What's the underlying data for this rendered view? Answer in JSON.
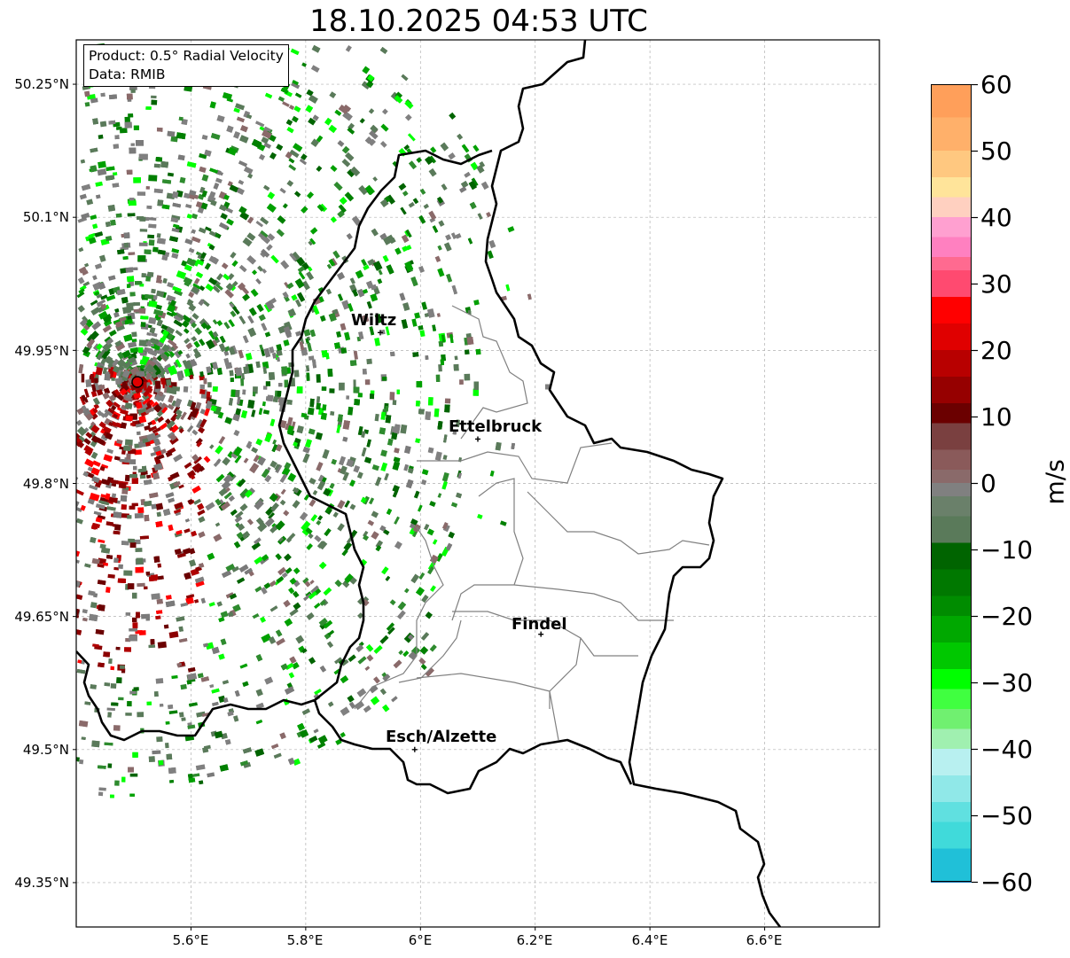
{
  "title": "18.10.2025 04:53 UTC",
  "info": {
    "product": "Product: 0.5° Radial Velocity",
    "source": "Data: RMIB"
  },
  "axes": {
    "lon_ticks": [
      "5.6°E",
      "5.8°E",
      "6°E",
      "6.2°E",
      "6.4°E",
      "6.6°E"
    ],
    "lat_ticks": [
      "50.25°N",
      "50.1°N",
      "49.95°N",
      "49.8°N",
      "49.65°N",
      "49.5°N",
      "49.35°N"
    ],
    "lon_range": [
      5.4,
      6.8
    ],
    "lat_range": [
      49.3,
      50.3
    ]
  },
  "cities": [
    {
      "name": "Wiltz",
      "lon": 5.93,
      "lat": 49.97
    },
    {
      "name": "Ettelbruck",
      "lon": 6.1,
      "lat": 49.85
    },
    {
      "name": "Findel",
      "lon": 6.21,
      "lat": 49.63
    },
    {
      "name": "Esch/Alzette",
      "lon": 5.99,
      "lat": 49.5
    }
  ],
  "radar_site": {
    "lon": 5.505,
    "lat": 49.914
  },
  "colorbar": {
    "label": "m/s",
    "ticks": [
      "60",
      "50",
      "40",
      "30",
      "20",
      "10",
      "0",
      "−10",
      "−20",
      "−30",
      "−40",
      "−50",
      "−60"
    ],
    "range": [
      -60,
      60
    ],
    "colors": {
      "pos_high": "#ff9f5a",
      "pos_orange": "#ffd59a",
      "pos_pink": "#ff80c0",
      "pos_red": "#ff0000",
      "pos_dark": "#6b0000",
      "zero_brown": "#8a6a6a",
      "zero_gray": "#808080",
      "zero_green": "#5a7a5a",
      "neg_dark": "#006400",
      "neg_green": "#00ff00",
      "neg_light": "#90ee90",
      "neg_cyan": "#40e0e0",
      "neg_blue": "#1f77b4"
    }
  }
}
